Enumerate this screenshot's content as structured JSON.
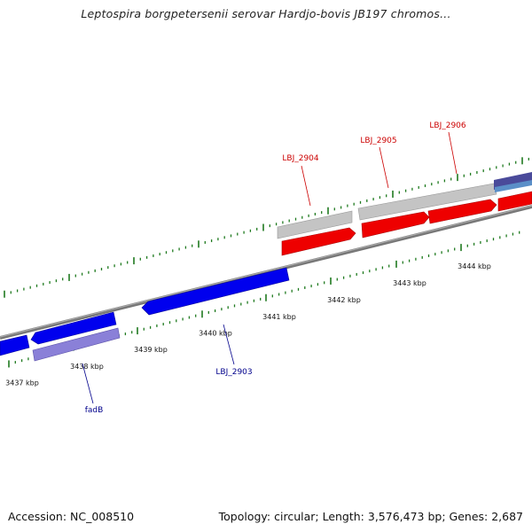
{
  "title": "Leptospira borgpetersenii serovar Hardjo-bovis JB197 chromos...",
  "footer": {
    "accession": "Accession: NC_008510",
    "topology": "Topology: circular; Length: 3,576,473 bp; Genes: 2,687"
  },
  "colors": {
    "backbone": "#8a8a8a",
    "tick": "#1f7a1f",
    "forward_gene": "#ee0000",
    "forward_label": "#cc0000",
    "forward_ortholog": "#c4c4c4",
    "reverse_gene": "#0000ee",
    "reverse_label": "#00008b",
    "reverse_ortholog": "#8a80d8"
  },
  "scale": {
    "unit": "kbp",
    "labels": [
      "3437 kbp",
      "3438 kbp",
      "3439 kbp",
      "3440 kbp",
      "3441 kbp",
      "3442 kbp",
      "3443 kbp",
      "3444 kbp"
    ]
  },
  "gene_labels": {
    "lbj_2904": "LBJ_2904",
    "lbj_2905": "LBJ_2905",
    "lbj_2906": "LBJ_2906",
    "lbj_2903": "LBJ_2903",
    "fadb": "fadB"
  }
}
